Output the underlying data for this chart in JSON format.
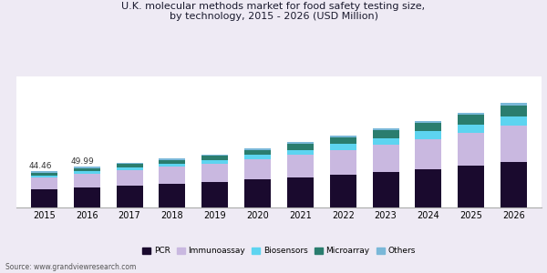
{
  "years": [
    2015,
    2016,
    2017,
    2018,
    2019,
    2020,
    2021,
    2022,
    2023,
    2024,
    2025,
    2026
  ],
  "PCR": [
    22.0,
    24.5,
    27.0,
    29.0,
    31.5,
    34.0,
    37.0,
    40.0,
    43.5,
    47.0,
    51.0,
    55.5
  ],
  "Immunoassay": [
    14.5,
    17.0,
    18.5,
    20.5,
    22.0,
    24.5,
    27.0,
    30.0,
    33.0,
    36.5,
    40.0,
    44.0
  ],
  "Biosensors": [
    2.5,
    2.8,
    3.2,
    3.8,
    4.5,
    5.5,
    6.5,
    7.5,
    8.5,
    9.5,
    10.5,
    12.0
  ],
  "Microarray": [
    3.5,
    3.8,
    4.2,
    4.8,
    5.5,
    6.5,
    7.5,
    8.5,
    9.5,
    10.5,
    11.5,
    13.0
  ],
  "Others": [
    1.96,
    1.89,
    1.6,
    1.4,
    1.5,
    1.5,
    2.0,
    2.0,
    2.5,
    2.5,
    3.0,
    3.5
  ],
  "colors": {
    "PCR": "#1a0a2e",
    "Immunoassay": "#c9b8e0",
    "Biosensors": "#5dd4f0",
    "Microarray": "#2a7d6e",
    "Others": "#7ab8d8"
  },
  "annotations": [
    {
      "idx": 0,
      "text": "44.46"
    },
    {
      "idx": 1,
      "text": "49.99"
    }
  ],
  "title_line1": "U.K. molecular methods market for food safety testing size,",
  "title_line2": "by technology, 2015 - 2026 (USD Million)",
  "source": "Source: www.grandviewresearch.com",
  "outer_bg": "#eeeaf4",
  "plot_bg": "#ffffff",
  "bar_width": 0.62,
  "ylim": [
    0,
    160
  ],
  "title_fontsize": 8,
  "tick_fontsize": 7,
  "legend_fontsize": 6.5
}
